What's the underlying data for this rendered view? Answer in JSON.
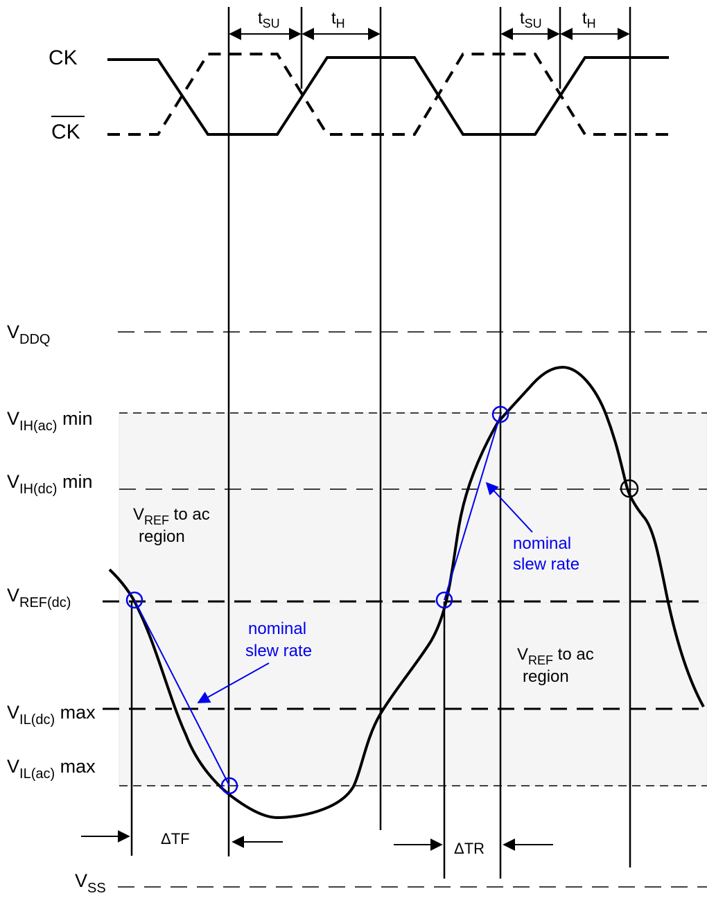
{
  "clock": {
    "ck": "CK",
    "ck_bar": "CK",
    "tsu_main": "t",
    "tsu_sub": "SU",
    "th_main": "t",
    "th_sub": "H"
  },
  "levels": {
    "vddq": {
      "main": "V",
      "sub": "DDQ",
      "tail": ""
    },
    "vih_ac": {
      "main": "V",
      "sub": "IH(ac)",
      "tail": " min"
    },
    "vih_dc": {
      "main": "V",
      "sub": "IH(dc)",
      "tail": " min"
    },
    "vref_dc": {
      "main": "V",
      "sub": "REF(dc)",
      "tail": ""
    },
    "vil_dc": {
      "main": "V",
      "sub": "IL(dc)",
      "tail": " max"
    },
    "vil_ac": {
      "main": "V",
      "sub": "IL(ac)",
      "tail": " max"
    },
    "vss": {
      "main": "V",
      "sub": "SS",
      "tail": ""
    }
  },
  "regions": {
    "upper": {
      "main": "V",
      "sub": "REF",
      "tail": " to ac",
      "line2": "region"
    },
    "lower": {
      "main": "V",
      "sub": "REF",
      "tail": " to ac",
      "line2": "region"
    }
  },
  "annotations": {
    "slew_left": [
      "nominal",
      "slew rate"
    ],
    "slew_right": [
      "nominal",
      "slew rate"
    ],
    "delta_tf": "ΔTF",
    "delta_tr": "ΔTR"
  },
  "colors": {
    "signal": "#000000",
    "annotation": "#0000ee",
    "region": "#f5f5f5"
  }
}
